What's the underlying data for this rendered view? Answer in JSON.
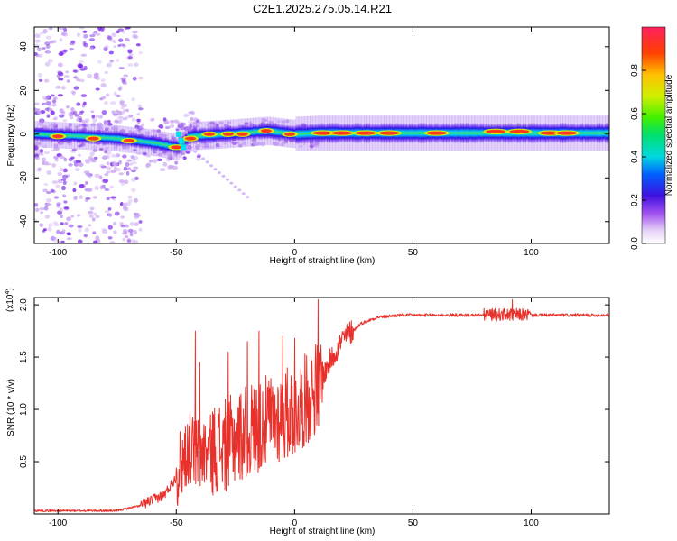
{
  "figure_title": "C2E1.2025.275.05.14.R21",
  "colors": {
    "snr_line": "#e8312a",
    "axis": "#000000",
    "background": "#ffffff"
  },
  "chart_data": [
    {
      "type": "heatmap",
      "name": "spectrogram",
      "xlabel": "Height of straight line (km)",
      "ylabel": "Frequency (Hz)",
      "xlim": [
        -110,
        133
      ],
      "ylim": [
        -50,
        49
      ],
      "xticks": [
        -100,
        -50,
        0,
        50,
        100
      ],
      "xtick_labels": [
        "-100",
        "-50",
        "0",
        "50",
        "100"
      ],
      "yticks": [
        -40,
        -20,
        0,
        20,
        40
      ],
      "ytick_labels": [
        "-40",
        "-20",
        "0",
        "20",
        "40"
      ],
      "band_center_hz": [
        [
          -110,
          0
        ],
        [
          -90,
          -1
        ],
        [
          -75,
          -2
        ],
        [
          -60,
          -4
        ],
        [
          -50,
          -6
        ],
        [
          -45,
          -1
        ],
        [
          -30,
          0
        ],
        [
          -12,
          1.5
        ],
        [
          0,
          0
        ],
        [
          10,
          0.5
        ],
        [
          133,
          0.5
        ]
      ],
      "colorbar": {
        "label": "Normalized spectral amplitude",
        "range": [
          0,
          1
        ],
        "ticks": [
          0.0,
          0.2,
          0.4,
          0.6,
          0.8
        ],
        "tick_labels": [
          "0.0",
          "0.2",
          "0.4",
          "0.6",
          "0.8"
        ]
      }
    },
    {
      "type": "line",
      "name": "snr",
      "xlabel": "Height of straight line (km)",
      "ylabel": "SNR (10 * v/v)",
      "scale_note": "(x10^4)",
      "scale_base": "(x10",
      "scale_exp": "4",
      "xlim": [
        -110,
        133
      ],
      "ylim": [
        0,
        2.07
      ],
      "xticks": [
        -100,
        -50,
        0,
        50,
        100
      ],
      "xtick_labels": [
        "-100",
        "-50",
        "0",
        "50",
        "100"
      ],
      "yticks": [
        0.5,
        1.0,
        1.5,
        2.0
      ],
      "ytick_labels": [
        "0.5",
        "1.0",
        "1.5",
        "2.0"
      ],
      "trend": [
        [
          -110,
          0.03
        ],
        [
          -75,
          0.03
        ],
        [
          -65,
          0.08
        ],
        [
          -55,
          0.18
        ],
        [
          -50,
          0.35
        ],
        [
          -45,
          0.6
        ],
        [
          -40,
          0.55
        ],
        [
          -30,
          0.6
        ],
        [
          -20,
          0.75
        ],
        [
          -10,
          0.85
        ],
        [
          0,
          0.95
        ],
        [
          5,
          1.05
        ],
        [
          10,
          1.2
        ],
        [
          15,
          1.45
        ],
        [
          20,
          1.65
        ],
        [
          28,
          1.82
        ],
        [
          35,
          1.88
        ],
        [
          45,
          1.9
        ],
        [
          133,
          1.9
        ]
      ],
      "peaks": [
        [
          -42,
          1.75
        ],
        [
          -40,
          1.45
        ],
        [
          -28,
          1.55
        ],
        [
          -20,
          1.65
        ],
        [
          -15,
          1.75
        ],
        [
          -5,
          1.7
        ],
        [
          0,
          1.68
        ],
        [
          10,
          2.05
        ],
        [
          92,
          2.05
        ]
      ]
    }
  ]
}
